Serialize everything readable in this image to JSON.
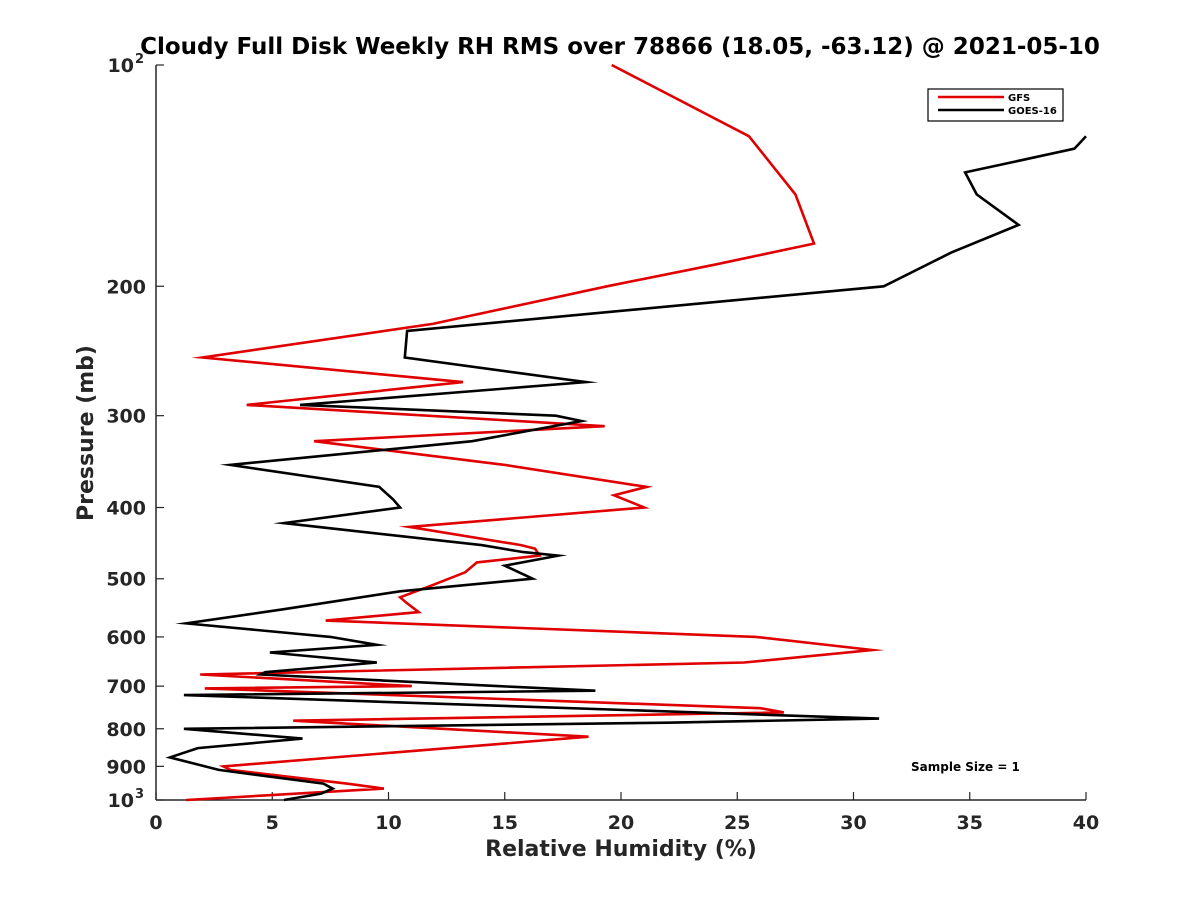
{
  "chart_data": {
    "type": "line",
    "title": "Cloudy Full Disk Weekly RH RMS over 78866 (18.05, -63.12) @ 2021-05-10",
    "xlabel": "Relative Humidity (%)",
    "ylabel": "Pressure (mb)",
    "xlim": [
      0,
      40
    ],
    "ylim": [
      100,
      1000
    ],
    "yscale": "log",
    "y_reversed": true,
    "grid": false,
    "x_ticks": [
      "0",
      "5",
      "10",
      "15",
      "20",
      "25",
      "30",
      "35",
      "40"
    ],
    "y_ticks": [
      {
        "value": 100,
        "base": "10",
        "exp": "2",
        "label": ""
      },
      {
        "value": 200,
        "label": "200"
      },
      {
        "value": 300,
        "label": "300"
      },
      {
        "value": 400,
        "label": "400"
      },
      {
        "value": 500,
        "label": "500"
      },
      {
        "value": 600,
        "label": "600"
      },
      {
        "value": 700,
        "label": "700"
      },
      {
        "value": 800,
        "label": "800"
      },
      {
        "value": 900,
        "label": "900"
      },
      {
        "value": 1000,
        "base": "10",
        "exp": "3",
        "label": ""
      }
    ],
    "legend": {
      "position": "top-right",
      "entries": [
        "GFS",
        "GOES-16"
      ]
    },
    "annotation": "Sample Size = 1",
    "series": [
      {
        "name": "GFS",
        "color": "#e00000",
        "points": [
          [
            19.6,
            100
          ],
          [
            25.5,
            125
          ],
          [
            27.5,
            150
          ],
          [
            28.3,
            175
          ],
          [
            24.0,
            187
          ],
          [
            19.4,
            200
          ],
          [
            11.9,
            225
          ],
          [
            2.0,
            250
          ],
          [
            13.2,
            270
          ],
          [
            3.9,
            290
          ],
          [
            19.3,
            310
          ],
          [
            6.8,
            325
          ],
          [
            15.0,
            350
          ],
          [
            21.1,
            375
          ],
          [
            19.7,
            385
          ],
          [
            21.0,
            400
          ],
          [
            10.9,
            425
          ],
          [
            15.7,
            450
          ],
          [
            16.3,
            455
          ],
          [
            16.5,
            465
          ],
          [
            13.8,
            475
          ],
          [
            13.3,
            490
          ],
          [
            11.9,
            510
          ],
          [
            10.5,
            530
          ],
          [
            10.8,
            540
          ],
          [
            11.3,
            555
          ],
          [
            7.3,
            570
          ],
          [
            25.8,
            600
          ],
          [
            30.8,
            625
          ],
          [
            25.3,
            650
          ],
          [
            1.9,
            675
          ],
          [
            11.0,
            700
          ],
          [
            2.1,
            705
          ],
          [
            26.0,
            750
          ],
          [
            27.0,
            760
          ],
          [
            5.9,
            780
          ],
          [
            18.6,
            820
          ],
          [
            2.9,
            900
          ],
          [
            3.2,
            910
          ],
          [
            8.2,
            950
          ],
          [
            9.8,
            965
          ],
          [
            1.3,
            1000
          ]
        ]
      },
      {
        "name": "GOES-16",
        "color": "#000000",
        "points": [
          [
            40.0,
            125
          ],
          [
            39.5,
            130
          ],
          [
            34.8,
            140
          ],
          [
            35.3,
            150
          ],
          [
            37.1,
            165
          ],
          [
            34.2,
            180
          ],
          [
            31.3,
            200
          ],
          [
            10.8,
            230
          ],
          [
            10.7,
            250
          ],
          [
            18.5,
            270
          ],
          [
            6.2,
            290
          ],
          [
            17.2,
            300
          ],
          [
            18.3,
            305
          ],
          [
            13.6,
            325
          ],
          [
            3.2,
            350
          ],
          [
            9.6,
            375
          ],
          [
            10.2,
            390
          ],
          [
            10.5,
            400
          ],
          [
            5.5,
            420
          ],
          [
            14.0,
            450
          ],
          [
            15.8,
            460
          ],
          [
            17.3,
            465
          ],
          [
            15.0,
            480
          ],
          [
            16.2,
            500
          ],
          [
            10.5,
            520
          ],
          [
            5.5,
            550
          ],
          [
            1.3,
            575
          ],
          [
            7.5,
            600
          ],
          [
            9.5,
            615
          ],
          [
            4.9,
            630
          ],
          [
            9.5,
            650
          ],
          [
            4.7,
            670
          ],
          [
            4.5,
            675
          ],
          [
            14.7,
            700
          ],
          [
            18.9,
            710
          ],
          [
            1.2,
            720
          ],
          [
            31.1,
            775
          ],
          [
            22.0,
            785
          ],
          [
            1.2,
            800
          ],
          [
            6.3,
            825
          ],
          [
            1.8,
            850
          ],
          [
            0.6,
            875
          ],
          [
            2.7,
            910
          ],
          [
            7.2,
            950
          ],
          [
            7.6,
            965
          ],
          [
            7.1,
            980
          ],
          [
            5.5,
            1000
          ]
        ]
      }
    ]
  }
}
